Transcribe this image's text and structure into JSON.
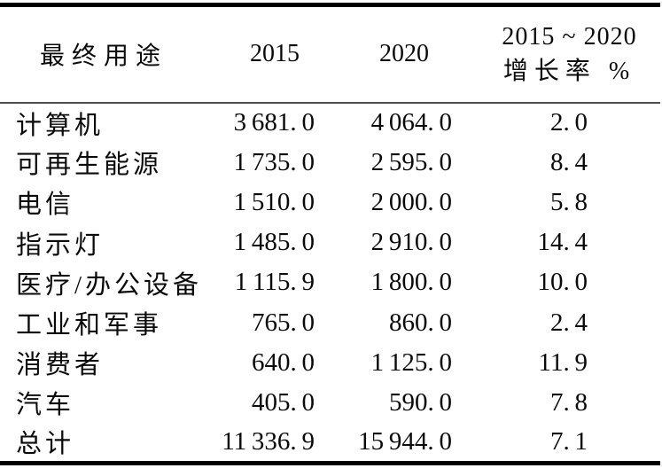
{
  "table": {
    "header": {
      "end_use": "最终用途",
      "year_2015": "2015",
      "year_2020": "2020",
      "growth_line1": "2015 ~ 2020",
      "growth_line2": "增长率 %"
    },
    "rows": [
      {
        "label": "计算机",
        "v2015": "3 681. 0",
        "v2020": "4 064. 0",
        "growth": "2. 0"
      },
      {
        "label": "可再生能源",
        "v2015": "1 735. 0",
        "v2020": "2 595. 0",
        "growth": "8. 4"
      },
      {
        "label": "电信",
        "v2015": "1 510. 0",
        "v2020": "2 000. 0",
        "growth": "5. 8"
      },
      {
        "label": "指示灯",
        "v2015": "1 485. 0",
        "v2020": "2 910. 0",
        "growth": "14. 4"
      },
      {
        "label": "医疗/办公设备",
        "v2015": "1 115. 9",
        "v2020": "1 800. 0",
        "growth": "10. 0"
      },
      {
        "label": "工业和军事",
        "v2015": "765. 0",
        "v2020": "860. 0",
        "growth": "2. 4"
      },
      {
        "label": "消费者",
        "v2015": "640. 0",
        "v2020": "1 125. 0",
        "growth": "11. 9"
      },
      {
        "label": "汽车",
        "v2015": "405. 0",
        "v2020": "590. 0",
        "growth": "7. 8"
      },
      {
        "label": "总计",
        "v2015": "11 336. 9",
        "v2020": "15 944. 0",
        "growth": "7. 1"
      }
    ]
  },
  "chart_data": {
    "type": "table",
    "columns": [
      "最终用途",
      "2015",
      "2020",
      "2015~2020 增长率 %"
    ],
    "rows": [
      [
        "计算机",
        3681.0,
        4064.0,
        2.0
      ],
      [
        "可再生能源",
        1735.0,
        2595.0,
        8.4
      ],
      [
        "电信",
        1510.0,
        2000.0,
        5.8
      ],
      [
        "指示灯",
        1485.0,
        2910.0,
        14.4
      ],
      [
        "医疗/办公设备",
        1115.9,
        1800.0,
        10.0
      ],
      [
        "工业和军事",
        765.0,
        860.0,
        2.4
      ],
      [
        "消费者",
        640.0,
        1125.0,
        11.9
      ],
      [
        "汽车",
        405.0,
        590.0,
        7.8
      ],
      [
        "总计",
        11336.9,
        15944.0,
        7.1
      ]
    ],
    "colors": {
      "text": "#0a0a0a",
      "thick_rule": "#000000",
      "thin_rule": "#4d4d4d",
      "background": "#ffffff"
    }
  }
}
